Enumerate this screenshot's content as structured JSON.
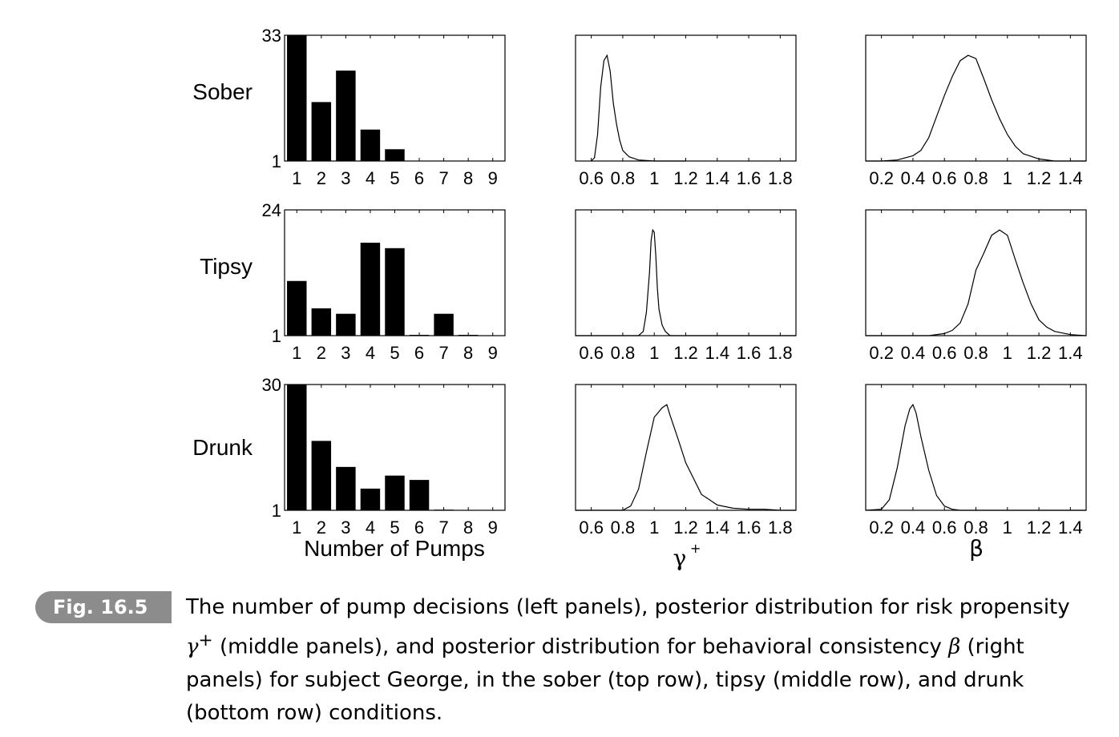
{
  "row_labels": [
    "Sober",
    "Tipsy",
    "Drunk"
  ],
  "xlabels": [
    "Number of Pumps",
    "γ",
    "+",
    "β"
  ],
  "caption": {
    "tag": "Fig. 16.5",
    "part1": "The number of pump decisions (left panels), posterior distribution for risk propensity",
    "gamma_sym": "γ",
    "gamma_sup": "+",
    "part2": " (middle panels), and posterior distribution for behavioral consistency ",
    "beta_sym": "β",
    "part3": " (right panels) for subject George, in the sober (top row), tipsy (middle row), and drunk (bottom row) conditions."
  },
  "chart_data": [
    {
      "type": "bar",
      "row": "Sober",
      "categories": [
        "1",
        "2",
        "3",
        "4",
        "5",
        "6",
        "7",
        "8",
        "9"
      ],
      "values": [
        33,
        16,
        24,
        9,
        4,
        0,
        0,
        0,
        0
      ],
      "ylim": [
        1,
        33
      ],
      "yticks": [
        1,
        33
      ],
      "xlabel": "",
      "ylabel": "Sober"
    },
    {
      "type": "line",
      "row": "Sober",
      "x": [
        0.6,
        0.62,
        0.64,
        0.66,
        0.68,
        0.7,
        0.72,
        0.74,
        0.76,
        0.78,
        0.8,
        0.84,
        0.9,
        1.0,
        1.2
      ],
      "y": [
        0,
        0.03,
        0.25,
        0.7,
        0.95,
        1.0,
        0.85,
        0.55,
        0.35,
        0.2,
        0.1,
        0.04,
        0.01,
        0,
        0
      ],
      "xlim": [
        0.5,
        1.9
      ],
      "xticks": [
        "0.6",
        "0.8",
        "1",
        "1.2",
        "1.4",
        "1.6",
        "1.8"
      ]
    },
    {
      "type": "line",
      "row": "Sober",
      "x": [
        0.1,
        0.2,
        0.3,
        0.4,
        0.45,
        0.5,
        0.55,
        0.6,
        0.65,
        0.7,
        0.75,
        0.8,
        0.85,
        0.9,
        0.95,
        1.0,
        1.05,
        1.1,
        1.2,
        1.3,
        1.5
      ],
      "y": [
        0,
        0,
        0.01,
        0.05,
        0.1,
        0.22,
        0.42,
        0.62,
        0.8,
        0.95,
        1.0,
        0.97,
        0.78,
        0.58,
        0.4,
        0.25,
        0.14,
        0.07,
        0.02,
        0,
        0
      ],
      "xlim": [
        0.1,
        1.5
      ],
      "xticks": [
        "0.2",
        "0.4",
        "0.6",
        "0.8",
        "1",
        "1.2",
        "1.4"
      ]
    },
    {
      "type": "bar",
      "row": "Tipsy",
      "categories": [
        "1",
        "2",
        "3",
        "4",
        "5",
        "6",
        "7",
        "8",
        "9"
      ],
      "values": [
        11,
        6,
        5,
        18,
        17,
        1,
        5,
        1,
        0
      ],
      "ylim": [
        1,
        24
      ],
      "yticks": [
        1,
        24
      ],
      "xlabel": "",
      "ylabel": "Tipsy"
    },
    {
      "type": "line",
      "row": "Tipsy",
      "x": [
        0.5,
        0.9,
        0.93,
        0.95,
        0.97,
        0.98,
        0.99,
        1.0,
        1.01,
        1.02,
        1.03,
        1.05,
        1.07,
        1.1,
        1.2,
        1.9
      ],
      "y": [
        0,
        0,
        0.04,
        0.22,
        0.6,
        0.9,
        1.0,
        0.98,
        0.75,
        0.45,
        0.25,
        0.1,
        0.04,
        0,
        0,
        0
      ],
      "xlim": [
        0.5,
        1.9
      ],
      "xticks": [
        "0.6",
        "0.8",
        "1",
        "1.2",
        "1.4",
        "1.6",
        "1.8"
      ]
    },
    {
      "type": "line",
      "row": "Tipsy",
      "x": [
        0.1,
        0.5,
        0.6,
        0.65,
        0.7,
        0.75,
        0.8,
        0.85,
        0.9,
        0.95,
        1.0,
        1.05,
        1.1,
        1.15,
        1.2,
        1.25,
        1.3,
        1.4,
        1.5
      ],
      "y": [
        0,
        0,
        0.02,
        0.05,
        0.12,
        0.3,
        0.62,
        0.78,
        0.95,
        1.0,
        0.95,
        0.72,
        0.5,
        0.3,
        0.15,
        0.08,
        0.04,
        0.01,
        0
      ],
      "xlim": [
        0.1,
        1.5
      ],
      "xticks": [
        "0.2",
        "0.4",
        "0.6",
        "0.8",
        "1",
        "1.2",
        "1.4"
      ]
    },
    {
      "type": "bar",
      "row": "Drunk",
      "categories": [
        "1",
        "2",
        "3",
        "4",
        "5",
        "6",
        "7",
        "8",
        "9"
      ],
      "values": [
        30,
        17,
        11,
        6,
        9,
        8,
        1,
        0,
        0
      ],
      "ylim": [
        1,
        30
      ],
      "yticks": [
        1,
        30
      ],
      "xlabel": "Number of Pumps",
      "ylabel": "Drunk"
    },
    {
      "type": "line",
      "row": "Drunk",
      "x": [
        0.5,
        0.8,
        0.85,
        0.9,
        0.95,
        1.0,
        1.05,
        1.08,
        1.1,
        1.15,
        1.2,
        1.25,
        1.3,
        1.35,
        1.4,
        1.5,
        1.6,
        1.7,
        1.8,
        1.9
      ],
      "y": [
        0,
        0,
        0.04,
        0.2,
        0.55,
        0.88,
        0.97,
        1.0,
        0.9,
        0.68,
        0.45,
        0.3,
        0.15,
        0.1,
        0.05,
        0.02,
        0.01,
        0.01,
        0,
        0
      ],
      "xlim": [
        0.5,
        1.9
      ],
      "xticks": [
        "0.6",
        "0.8",
        "1",
        "1.2",
        "1.4",
        "1.6",
        "1.8"
      ]
    },
    {
      "type": "line",
      "row": "Drunk",
      "x": [
        0.1,
        0.2,
        0.25,
        0.3,
        0.35,
        0.38,
        0.4,
        0.42,
        0.45,
        0.5,
        0.55,
        0.6,
        0.65,
        0.7,
        0.8,
        1.5
      ],
      "y": [
        0,
        0.01,
        0.1,
        0.4,
        0.8,
        0.96,
        1.0,
        0.92,
        0.7,
        0.38,
        0.14,
        0.04,
        0.01,
        0,
        0,
        0
      ],
      "xlim": [
        0.1,
        1.5
      ],
      "xticks": [
        "0.2",
        "0.4",
        "0.6",
        "0.8",
        "1",
        "1.2",
        "1.4"
      ]
    }
  ]
}
